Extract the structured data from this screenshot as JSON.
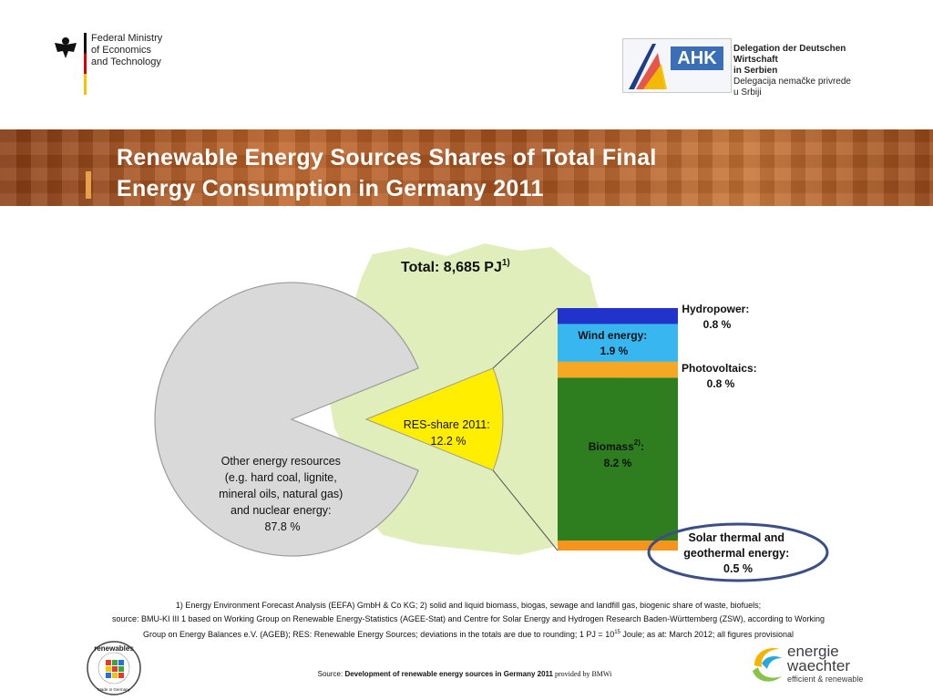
{
  "header": {
    "ministry_lines": [
      "Federal Ministry",
      "of Economics",
      "and Technology"
    ],
    "ahk_brand": "AHK",
    "ahk_lines": [
      "Delegation der Deutschen Wirtschaft",
      "in Serbien",
      "Delegacija nemačke privrede",
      "u Srbiji"
    ]
  },
  "banner": {
    "title_line1": "Renewable Energy Sources Shares of Total Final",
    "title_line2": "Energy Consumption in Germany 2011"
  },
  "chart_data": {
    "type": "pie",
    "title": "Total: 8,685 PJ",
    "title_sup": "1)",
    "slices": [
      {
        "label_lines": [
          "Other energy resources",
          "(e.g. hard coal, lignite,",
          "mineral oils, natural gas)",
          "and nuclear energy:",
          "87.8 %"
        ],
        "value": 87.8,
        "color": "#d9d9d9"
      },
      {
        "label_lines": [
          "RES-share 2011:",
          "12.2 %"
        ],
        "value": 12.2,
        "color": "#ffee00"
      }
    ],
    "breakdown": {
      "type": "stacked-bar",
      "segments": [
        {
          "name": "Solar thermal and geothermal energy",
          "label_lines": [
            "Solar thermal and",
            "geothermal energy:",
            "0.5 %"
          ],
          "value": 0.5,
          "color": "#f7941d"
        },
        {
          "name": "Biomass",
          "label_lines": [
            "Biomass",
            "8.2 %"
          ],
          "sup": "2)",
          "value": 8.2,
          "color": "#2e7d1f"
        },
        {
          "name": "Photovoltaics",
          "label_lines": [
            "Photovoltaics:",
            "0.8 %"
          ],
          "value": 0.8,
          "color": "#f7a823"
        },
        {
          "name": "Wind energy",
          "label_lines": [
            "Wind energy:",
            "1.9 %"
          ],
          "value": 1.9,
          "color": "#38b6ef"
        },
        {
          "name": "Hydropower",
          "label_lines": [
            "Hydropower:",
            "0.8 %"
          ],
          "value": 0.8,
          "color": "#2233cc"
        }
      ]
    }
  },
  "footnote": {
    "line1": "1) Energy Environment Forecast Analysis (EEFA) GmbH & Co KG; 2) solid and liquid biomass, biogas, sewage and landfill gas, biogenic share of waste, biofuels;",
    "line2": "source: BMU-KI III 1 based on Working Group on Renewable Energy-Statistics (AGEE-Stat) and Centre for Solar Energy and Hydrogen Research Baden-Württemberg (ZSW), according to Working",
    "line3a": "Group on Energy Balances e.V. (AGEB); RES: Renewable Energy Sources; deviations in the totals are due to rounding; 1 PJ = 10",
    "line3_sup": "15",
    "line3b": " Joule; as at: March 2012; all figures provisional"
  },
  "source": {
    "prefix": "Source:",
    "title": "Development of renewable energy sources in Germany 2011",
    "suffix": " provided by BMWi"
  },
  "logos": {
    "renewables": "renewables",
    "renewables_sub": "Made in Germany",
    "ew_line1": "energie",
    "ew_line2": "waechter",
    "ew_line3": "efficient & renewable"
  }
}
